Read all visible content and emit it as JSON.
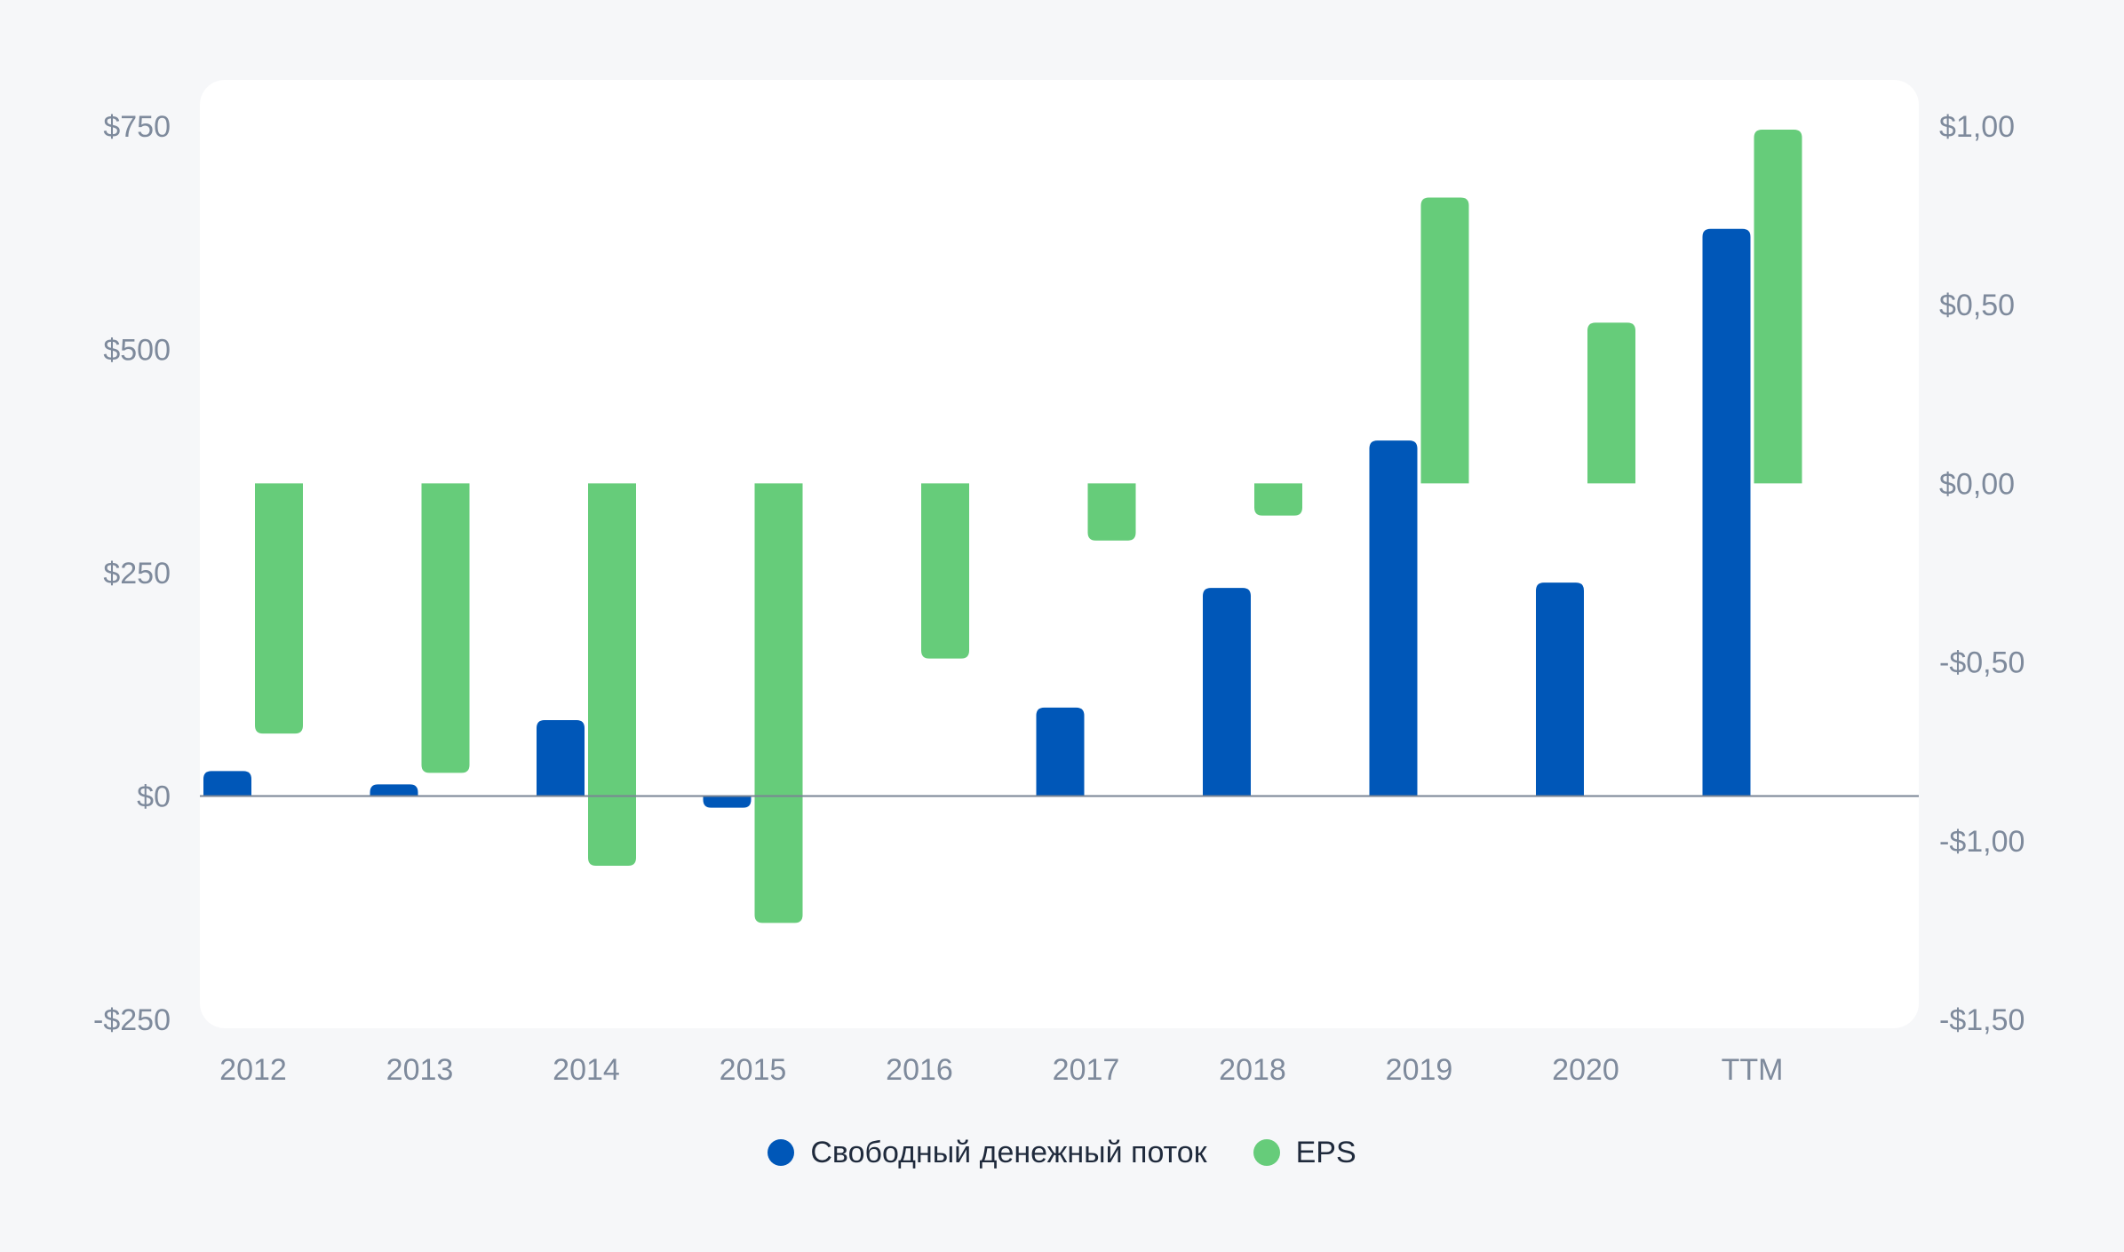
{
  "chart_data": {
    "type": "bar",
    "categories": [
      "2012",
      "2013",
      "2014",
      "2015",
      "2016",
      "2017",
      "2018",
      "2019",
      "2020",
      "TTM"
    ],
    "series": [
      {
        "name": "Свободный денежный поток",
        "axis": "left",
        "color": "#0057b8",
        "values": [
          28,
          13,
          85,
          -13,
          0,
          99,
          233,
          398,
          239,
          635
        ]
      },
      {
        "name": "EPS",
        "axis": "right",
        "color": "#66cc7a",
        "values": [
          -0.7,
          -0.81,
          -1.07,
          -1.23,
          -0.49,
          -0.16,
          -0.09,
          0.8,
          0.45,
          0.99
        ]
      }
    ],
    "y_left": {
      "ylim": [
        -250,
        750
      ],
      "ticks": [
        750,
        500,
        250,
        0,
        -250
      ],
      "tick_labels": [
        "$750",
        "$500",
        "$250",
        "$0",
        "-$250"
      ]
    },
    "y_right": {
      "ylim": [
        -1.5,
        1.0
      ],
      "ticks": [
        1.0,
        0.5,
        0.0,
        -0.5,
        -1.0,
        -1.5
      ],
      "tick_labels": [
        "$1,00",
        "$0,50",
        "$0,00",
        "-$0,50",
        "-$1,00",
        "-$1,50"
      ]
    },
    "grid": false,
    "legend": "bottom-center"
  }
}
